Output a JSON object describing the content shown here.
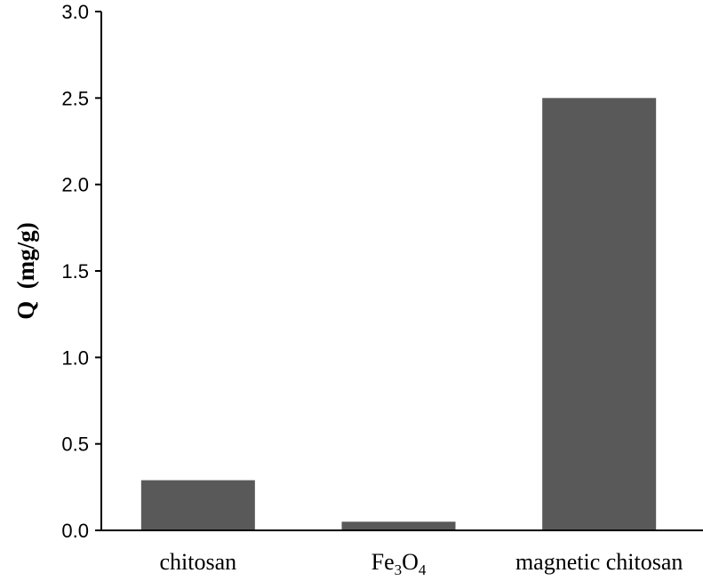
{
  "chart_data": {
    "type": "bar",
    "categories": [
      "chitosan",
      "Fe3O4",
      "magnetic chitosan"
    ],
    "category_display": [
      {
        "main": "chitosan"
      },
      {
        "main": "Fe",
        "sub1": "3",
        "mid": "O",
        "sub2": "4"
      },
      {
        "main": "magnetic chitosan"
      }
    ],
    "values": [
      0.29,
      0.05,
      2.5
    ],
    "ylabel": "Q  (mg/g)",
    "ylim": [
      0,
      3.0
    ],
    "yticks": [
      "0.0",
      "0.5",
      "1.0",
      "1.5",
      "2.0",
      "2.5",
      "3.0"
    ],
    "bar_color": "#595959",
    "grid": false,
    "legend": "none"
  }
}
